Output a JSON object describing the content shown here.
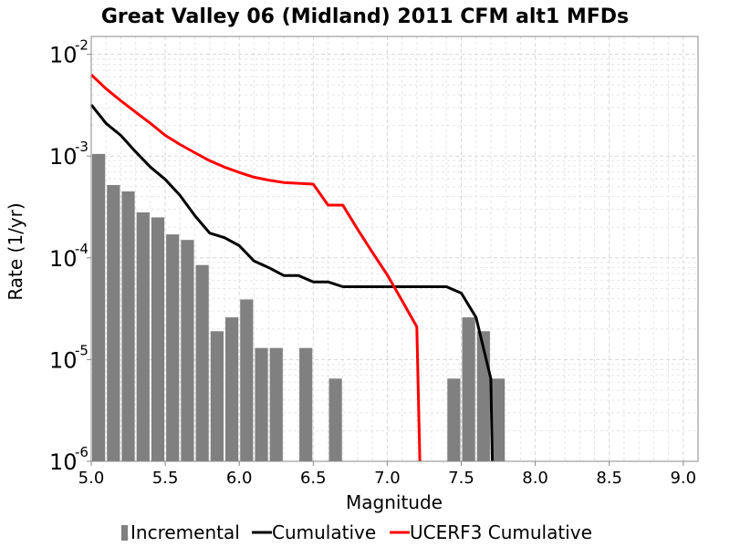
{
  "chart_data": {
    "type": "bar",
    "title": "Great Valley 06 (Midland) 2011 CFM alt1 MFDs",
    "xlabel": "Magnitude",
    "ylabel": "Rate (1/yr)",
    "xlim": [
      5.0,
      9.1
    ],
    "ylim": [
      1e-06,
      0.015
    ],
    "yscale": "log",
    "grid": true,
    "legend_position": "bottom",
    "x_ticks": [
      "5.0",
      "5.5",
      "6.0",
      "6.5",
      "7.0",
      "7.5",
      "8.0",
      "8.5",
      "9.0"
    ],
    "y_ticks": [
      {
        "base": "10",
        "exp": "-6",
        "value": 1e-06
      },
      {
        "base": "10",
        "exp": "-5",
        "value": 1e-05
      },
      {
        "base": "10",
        "exp": "-4",
        "value": 0.0001
      },
      {
        "base": "10",
        "exp": "-3",
        "value": 0.001
      },
      {
        "base": "10",
        "exp": "-2",
        "value": 0.01
      }
    ],
    "series": [
      {
        "name": "Incremental",
        "kind": "bar",
        "color": "#808080",
        "x": [
          5.05,
          5.15,
          5.25,
          5.35,
          5.45,
          5.55,
          5.65,
          5.75,
          5.85,
          5.95,
          6.05,
          6.15,
          6.25,
          6.45,
          6.65,
          7.45,
          7.55,
          7.65,
          7.75
        ],
        "y": [
          0.00105,
          0.00052,
          0.00045,
          0.00028,
          0.00025,
          0.00017,
          0.00015,
          8.5e-05,
          1.9e-05,
          2.6e-05,
          3.9e-05,
          1.3e-05,
          1.3e-05,
          1.3e-05,
          6.5e-06,
          6.5e-06,
          2.6e-05,
          1.9e-05,
          6.5e-06
        ]
      },
      {
        "name": "Cumulative",
        "kind": "line",
        "color": "#000000",
        "x": [
          5.0,
          5.1,
          5.2,
          5.3,
          5.4,
          5.5,
          5.6,
          5.7,
          5.8,
          5.9,
          6.0,
          6.1,
          6.2,
          6.3,
          6.4,
          6.5,
          6.6,
          6.7,
          6.8,
          6.9,
          7.0,
          7.1,
          7.2,
          7.3,
          7.4,
          7.5,
          7.6,
          7.7,
          7.71
        ],
        "y": [
          0.0032,
          0.0021,
          0.0016,
          0.0011,
          0.00078,
          0.00059,
          0.00041,
          0.00026,
          0.000175,
          0.000158,
          0.000132,
          9.3e-05,
          8e-05,
          6.7e-05,
          6.7e-05,
          5.8e-05,
          5.8e-05,
          5.2e-05,
          5.2e-05,
          5.2e-05,
          5.2e-05,
          5.2e-05,
          5.2e-05,
          5.2e-05,
          5.2e-05,
          4.5e-05,
          2.6e-05,
          6.5e-06,
          1e-06
        ]
      },
      {
        "name": "UCERF3 Cumulative",
        "kind": "line",
        "color": "#ff0000",
        "x": [
          5.0,
          5.1,
          5.2,
          5.3,
          5.4,
          5.5,
          5.6,
          5.7,
          5.8,
          5.9,
          6.0,
          6.1,
          6.2,
          6.3,
          6.4,
          6.5,
          6.6,
          6.7,
          6.8,
          6.9,
          7.0,
          7.1,
          7.2,
          7.22
        ],
        "y": [
          0.0063,
          0.0046,
          0.0035,
          0.0027,
          0.0021,
          0.0016,
          0.0013,
          0.00108,
          0.0009,
          0.00078,
          0.00069,
          0.00062,
          0.00058,
          0.00055,
          0.00054,
          0.00053,
          0.00033,
          0.00033,
          0.00019,
          0.000113,
          6.8e-05,
          3.8e-05,
          2.1e-05,
          1e-06
        ]
      }
    ]
  }
}
